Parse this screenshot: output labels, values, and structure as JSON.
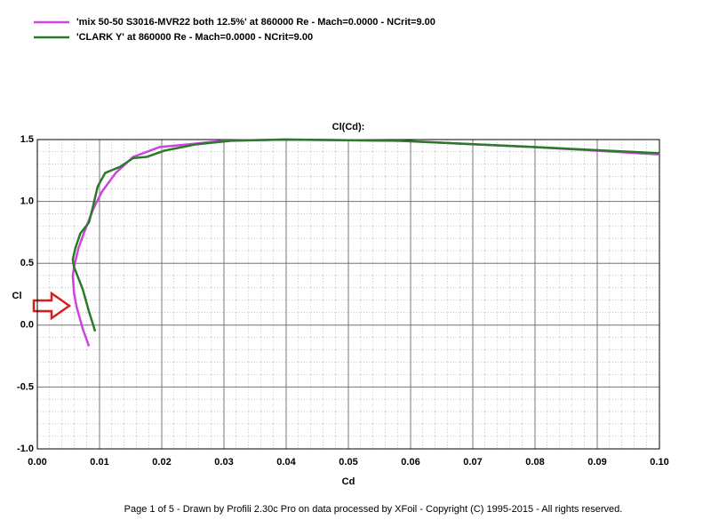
{
  "chart_data": {
    "type": "line",
    "title": "Cl(Cd):",
    "x_label": "Cd",
    "y_label": "Cl",
    "footer": "Page 1 of 5   -   Drawn by Profili 2.30c Pro on data processed by  XFoil - Copyright (C) 1995-2015 - All rights reserved.",
    "xlim": [
      0,
      0.1
    ],
    "ylim": [
      -1,
      1.5
    ],
    "xticks": [
      {
        "value": 0,
        "label": "0.00"
      },
      0.01,
      0.02,
      0.03,
      0.04,
      0.05,
      0.06,
      0.07,
      0.08,
      0.09,
      {
        "value": 0.1,
        "label": "0.10"
      }
    ],
    "yticks": [
      {
        "value": -1,
        "label": "-1.0"
      },
      -0.5,
      {
        "value": 0,
        "label": "0.0"
      },
      0.5,
      {
        "value": 1,
        "label": "1.0"
      },
      1.5
    ],
    "grid": true,
    "series": [
      {
        "name": "'mix 50-50 S3016-MVR22 both 12.5%' at 860000 Re - Mach=0.0000 - NCrit=9.00",
        "color": "#cc44dd",
        "x": [
          0.0083,
          0.0073,
          0.0063,
          0.0059,
          0.0057,
          0.0059,
          0.0066,
          0.0076,
          0.009,
          0.0104,
          0.0126,
          0.0154,
          0.0197,
          0.024,
          0.0297,
          0.0397,
          0.0583,
          0.0797,
          0.1
        ],
        "values": [
          -0.17,
          -0.03,
          0.15,
          0.26,
          0.4,
          0.47,
          0.62,
          0.76,
          0.94,
          1.08,
          1.23,
          1.36,
          1.44,
          1.46,
          1.49,
          1.5,
          1.49,
          1.44,
          1.38
        ]
      },
      {
        "name": "'CLARK Y' at 860000 Re - Mach=0.0000 - NCrit=9.00",
        "color": "#2a7a2a",
        "x": [
          0.0093,
          0.0083,
          0.0073,
          0.0066,
          0.0059,
          0.0057,
          0.0061,
          0.0069,
          0.0083,
          0.009,
          0.0097,
          0.0109,
          0.0133,
          0.0154,
          0.0176,
          0.0204,
          0.0254,
          0.0311,
          0.0397,
          0.0583,
          0.0797,
          0.1
        ],
        "values": [
          -0.05,
          0.11,
          0.29,
          0.38,
          0.47,
          0.53,
          0.62,
          0.74,
          0.83,
          0.97,
          1.12,
          1.23,
          1.28,
          1.35,
          1.36,
          1.41,
          1.46,
          1.49,
          1.5,
          1.49,
          1.44,
          1.39
        ]
      }
    ]
  }
}
